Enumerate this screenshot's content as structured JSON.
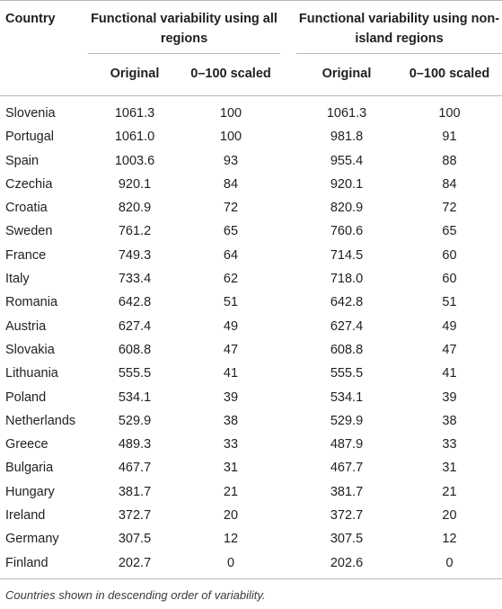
{
  "table": {
    "header": {
      "country": "Country",
      "group_all": "Functional variability using all regions",
      "group_non_island": "Functional variability using non-island regions",
      "sub_original": "Original",
      "sub_scaled": "0–100 scaled"
    },
    "rows": [
      {
        "country": "Slovenia",
        "all_original": "1061.3",
        "all_scaled": "100",
        "ni_original": "1061.3",
        "ni_scaled": "100"
      },
      {
        "country": "Portugal",
        "all_original": "1061.0",
        "all_scaled": "100",
        "ni_original": "981.8",
        "ni_scaled": "91"
      },
      {
        "country": "Spain",
        "all_original": "1003.6",
        "all_scaled": "93",
        "ni_original": "955.4",
        "ni_scaled": "88"
      },
      {
        "country": "Czechia",
        "all_original": "920.1",
        "all_scaled": "84",
        "ni_original": "920.1",
        "ni_scaled": "84"
      },
      {
        "country": "Croatia",
        "all_original": "820.9",
        "all_scaled": "72",
        "ni_original": "820.9",
        "ni_scaled": "72"
      },
      {
        "country": "Sweden",
        "all_original": "761.2",
        "all_scaled": "65",
        "ni_original": "760.6",
        "ni_scaled": "65"
      },
      {
        "country": "France",
        "all_original": "749.3",
        "all_scaled": "64",
        "ni_original": "714.5",
        "ni_scaled": "60"
      },
      {
        "country": "Italy",
        "all_original": "733.4",
        "all_scaled": "62",
        "ni_original": "718.0",
        "ni_scaled": "60"
      },
      {
        "country": "Romania",
        "all_original": "642.8",
        "all_scaled": "51",
        "ni_original": "642.8",
        "ni_scaled": "51"
      },
      {
        "country": "Austria",
        "all_original": "627.4",
        "all_scaled": "49",
        "ni_original": "627.4",
        "ni_scaled": "49"
      },
      {
        "country": "Slovakia",
        "all_original": "608.8",
        "all_scaled": "47",
        "ni_original": "608.8",
        "ni_scaled": "47"
      },
      {
        "country": "Lithuania",
        "all_original": "555.5",
        "all_scaled": "41",
        "ni_original": "555.5",
        "ni_scaled": "41"
      },
      {
        "country": "Poland",
        "all_original": "534.1",
        "all_scaled": "39",
        "ni_original": "534.1",
        "ni_scaled": "39"
      },
      {
        "country": "Netherlands",
        "all_original": "529.9",
        "all_scaled": "38",
        "ni_original": "529.9",
        "ni_scaled": "38"
      },
      {
        "country": "Greece",
        "all_original": "489.3",
        "all_scaled": "33",
        "ni_original": "487.9",
        "ni_scaled": "33"
      },
      {
        "country": "Bulgaria",
        "all_original": "467.7",
        "all_scaled": "31",
        "ni_original": "467.7",
        "ni_scaled": "31"
      },
      {
        "country": "Hungary",
        "all_original": "381.7",
        "all_scaled": "21",
        "ni_original": "381.7",
        "ni_scaled": "21"
      },
      {
        "country": "Ireland",
        "all_original": "372.7",
        "all_scaled": "20",
        "ni_original": "372.7",
        "ni_scaled": "20"
      },
      {
        "country": "Germany",
        "all_original": "307.5",
        "all_scaled": "12",
        "ni_original": "307.5",
        "ni_scaled": "12"
      },
      {
        "country": "Finland",
        "all_original": "202.7",
        "all_scaled": "0",
        "ni_original": "202.6",
        "ni_scaled": "0"
      }
    ],
    "footnote": "Countries shown in descending order of variability."
  }
}
